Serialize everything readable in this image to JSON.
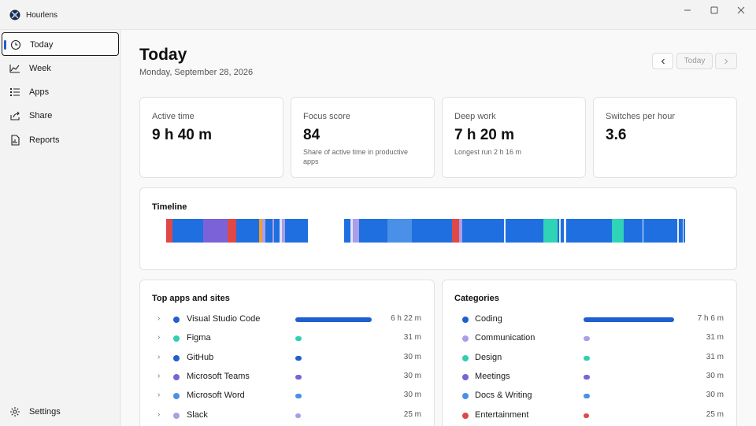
{
  "window": {
    "title": "Hourlens",
    "controls": [
      "minimize",
      "maximize",
      "close"
    ]
  },
  "sidebar": {
    "items": [
      {
        "label": "Today",
        "icon": "clock-icon",
        "active": true
      },
      {
        "label": "Week",
        "icon": "chart-icon",
        "active": false
      },
      {
        "label": "Apps",
        "icon": "list-icon",
        "active": false
      },
      {
        "label": "Share",
        "icon": "share-icon",
        "active": false
      },
      {
        "label": "Reports",
        "icon": "report-icon",
        "active": false
      }
    ],
    "settings_label": "Settings"
  },
  "header": {
    "title": "Today",
    "date": "Monday, September 28, 2026",
    "today_label": "Today"
  },
  "stats": [
    {
      "label": "Active time",
      "value": "9 h 40 m",
      "sub": ""
    },
    {
      "label": "Focus score",
      "value": "84",
      "sub": "Share of active time in productive apps"
    },
    {
      "label": "Deep work",
      "value": "7 h 20 m",
      "sub": "Longest run 2 h 16 m"
    },
    {
      "label": "Switches per hour",
      "value": "3.6",
      "sub": ""
    }
  ],
  "timeline": {
    "title": "Timeline",
    "colors": {
      "coding": "#1f6fe0",
      "communication": "#a99ee8",
      "design": "#2fd3b5",
      "meetings": "#7b62d8",
      "docs": "#4a90e8",
      "entertainment": "#e04848",
      "other": "#f0a030"
    }
  },
  "top_apps": {
    "title": "Top apps and sites",
    "rows": [
      {
        "name": "Visual Studio Code",
        "value": "6 h 22 m",
        "color": "#1f5fd0",
        "share": 1.0
      },
      {
        "name": "Figma",
        "value": "31 m",
        "color": "#2fcfb0",
        "share": 0.08
      },
      {
        "name": "GitHub",
        "value": "30 m",
        "color": "#1f5fd0",
        "share": 0.078
      },
      {
        "name": "Microsoft Teams",
        "value": "30 m",
        "color": "#7b62d8",
        "share": 0.078
      },
      {
        "name": "Microsoft Word",
        "value": "30 m",
        "color": "#4a90e8",
        "share": 0.078
      },
      {
        "name": "Slack",
        "value": "25 m",
        "color": "#a99ee8",
        "share": 0.065
      }
    ]
  },
  "categories": {
    "title": "Categories",
    "rows": [
      {
        "name": "Coding",
        "value": "7 h 6 m",
        "color": "#1f5fd0",
        "share": 1.0
      },
      {
        "name": "Communication",
        "value": "31 m",
        "color": "#a99ee8",
        "share": 0.073
      },
      {
        "name": "Design",
        "value": "31 m",
        "color": "#2fcfb0",
        "share": 0.073
      },
      {
        "name": "Meetings",
        "value": "30 m",
        "color": "#7b62d8",
        "share": 0.07
      },
      {
        "name": "Docs & Writing",
        "value": "30 m",
        "color": "#4a90e8",
        "share": 0.07
      },
      {
        "name": "Entertainment",
        "value": "25 m",
        "color": "#e04848",
        "share": 0.059
      }
    ]
  }
}
